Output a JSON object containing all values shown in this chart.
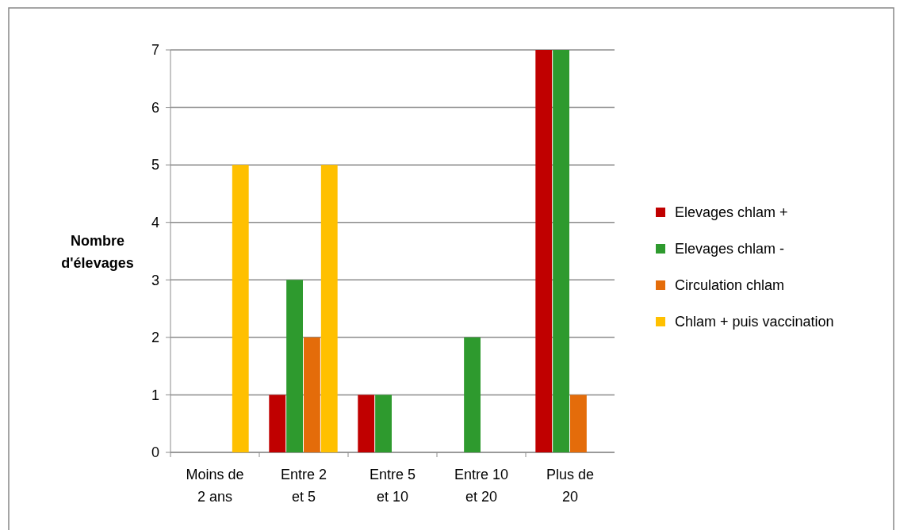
{
  "chart_data": {
    "type": "bar",
    "ylabel": "Nombre d'élevages",
    "categories": [
      "Moins de 2 ans",
      "Entre 2 et 5",
      "Entre 5 et 10",
      "Entre 10 et 20",
      "Plus de 20"
    ],
    "series": [
      {
        "name": "Elevages chlam +",
        "color": "#c00000",
        "values": [
          0,
          1,
          1,
          0,
          7
        ]
      },
      {
        "name": "Elevages chlam -",
        "color": "#2e9a2e",
        "values": [
          0,
          3,
          1,
          2,
          7
        ]
      },
      {
        "name": "Circulation chlam",
        "color": "#e46c0a",
        "values": [
          0,
          2,
          0,
          0,
          1
        ]
      },
      {
        "name": "Chlam + puis vaccination",
        "color": "#ffc000",
        "values": [
          5,
          5,
          0,
          0,
          0
        ]
      }
    ],
    "ylim": [
      0,
      7
    ],
    "yticks": [
      0,
      1,
      2,
      3,
      4,
      5,
      6,
      7
    ],
    "grid": "y",
    "legend": "right"
  }
}
